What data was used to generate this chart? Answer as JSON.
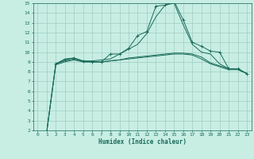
{
  "xlabel": "Humidex (Indice chaleur)",
  "bg_color": "#c8eee4",
  "grid_color": "#a0ccc0",
  "line_color": "#1a6b5a",
  "xlim": [
    -0.5,
    23.5
  ],
  "ylim": [
    2,
    15
  ],
  "xticks": [
    0,
    1,
    2,
    3,
    4,
    5,
    6,
    7,
    8,
    9,
    10,
    11,
    12,
    13,
    14,
    15,
    16,
    17,
    18,
    19,
    20,
    21,
    22,
    23
  ],
  "yticks": [
    2,
    3,
    4,
    5,
    6,
    7,
    8,
    9,
    10,
    11,
    12,
    13,
    14,
    15
  ],
  "lines": [
    {
      "x": [
        1,
        2,
        3,
        4,
        5,
        6,
        7,
        8,
        9,
        10,
        11,
        12,
        13,
        14,
        15,
        16,
        17,
        18,
        19,
        20,
        21,
        22,
        23
      ],
      "y": [
        1.8,
        8.8,
        9.2,
        9.4,
        9.1,
        9.0,
        9.0,
        9.8,
        9.8,
        10.4,
        11.7,
        12.1,
        14.7,
        14.8,
        15.2,
        13.3,
        11.0,
        10.6,
        10.1,
        10.0,
        8.3,
        8.3,
        7.8
      ],
      "marker": true
    },
    {
      "x": [
        1,
        2,
        3,
        4,
        5,
        6,
        7,
        8,
        9,
        10,
        11,
        12,
        13,
        14,
        15,
        16,
        17,
        18,
        19,
        20,
        21,
        22,
        23
      ],
      "y": [
        1.8,
        8.7,
        9.0,
        9.2,
        9.0,
        9.0,
        9.0,
        9.1,
        9.2,
        9.4,
        9.5,
        9.6,
        9.7,
        9.8,
        9.9,
        9.9,
        9.8,
        9.5,
        8.9,
        8.6,
        8.3,
        8.3,
        7.8
      ],
      "marker": false
    },
    {
      "x": [
        1,
        2,
        3,
        4,
        5,
        6,
        7,
        8,
        9,
        10,
        11,
        12,
        13,
        14,
        15,
        16,
        17,
        18,
        19,
        20,
        21,
        22,
        23
      ],
      "y": [
        1.8,
        8.8,
        9.1,
        9.3,
        9.0,
        9.0,
        9.0,
        9.1,
        9.2,
        9.3,
        9.4,
        9.5,
        9.6,
        9.7,
        9.8,
        9.8,
        9.7,
        9.3,
        8.8,
        8.5,
        8.2,
        8.2,
        7.8
      ],
      "marker": false
    },
    {
      "x": [
        2,
        3,
        4,
        5,
        6,
        7,
        8,
        9,
        10,
        11,
        12,
        13,
        14,
        15,
        16,
        17,
        18,
        19,
        20,
        21,
        22,
        23
      ],
      "y": [
        8.8,
        9.3,
        9.4,
        9.1,
        9.1,
        9.2,
        9.3,
        9.8,
        10.3,
        10.8,
        11.9,
        13.6,
        14.8,
        15.0,
        12.8,
        10.8,
        10.0,
        9.8,
        8.8,
        8.3,
        8.3,
        7.8
      ],
      "marker": false
    }
  ]
}
